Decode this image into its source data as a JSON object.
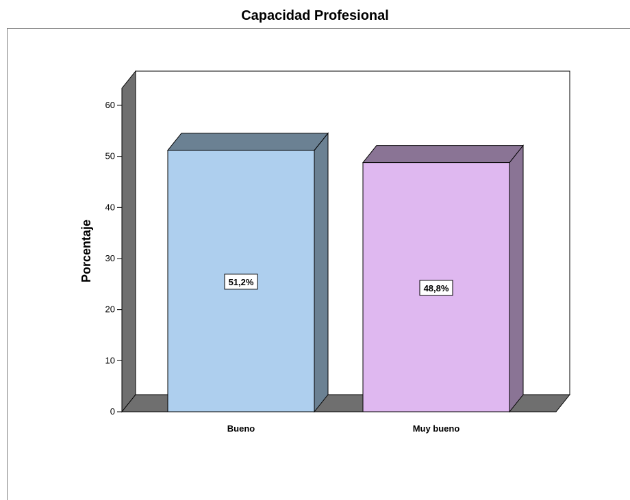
{
  "chart_data": {
    "type": "bar",
    "title": "Capacidad Profesional",
    "xlabel": "",
    "ylabel": "Porcentaje",
    "categories": [
      "Bueno",
      "Muy bueno"
    ],
    "values": [
      51.2,
      48.8
    ],
    "data_labels": [
      "51,2%",
      "48,8%"
    ],
    "ylim": [
      0,
      60
    ],
    "yticks": [
      0,
      10,
      20,
      30,
      40,
      50,
      60
    ],
    "grid": false,
    "three_d": true,
    "colors": {
      "bars": [
        "#aecfee",
        "#dfb8f0"
      ],
      "bar_sides": [
        "#6b8193",
        "#8a7495"
      ],
      "floor": "#6f6f6f",
      "wall": "#6f6f6f",
      "outline": "#000000"
    }
  }
}
